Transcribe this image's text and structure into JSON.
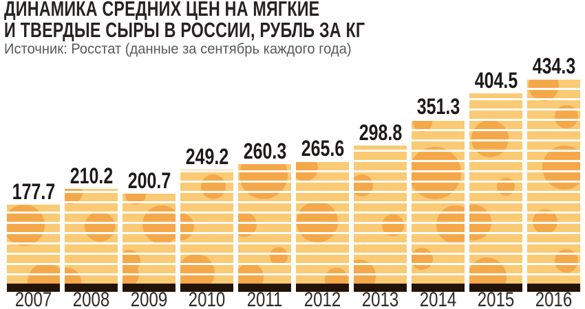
{
  "header": {
    "title_lines": [
      "ДИНАМИКА СРЕДНИХ ЦЕН НА МЯГКИЕ",
      "И ТВЕРДЫЕ СЫРЫ В РОССИИ, РУБЛЬ ЗА КГ"
    ],
    "source": "Источник: Росстат (данные за сентябрь каждого года)"
  },
  "chart_data": {
    "type": "bar",
    "title": "Динамика средних цен на мягкие и твердые сыры в России, рубль за кг",
    "source": "Росстат (данные за сентябрь каждого года)",
    "categories": [
      "2007",
      "2008",
      "2009",
      "2010",
      "2011",
      "2012",
      "2013",
      "2014",
      "2015",
      "2016"
    ],
    "values": [
      177.7,
      210.2,
      200.7,
      249.2,
      260.3,
      265.6,
      298.8,
      351.3,
      404.5,
      434.3
    ],
    "unit": "рубль за кг",
    "ylabel": "",
    "xlabel": "",
    "ylim": [
      0,
      434.3
    ],
    "grid": false,
    "legend": false,
    "value_labels_shown": true,
    "bar_style": "cheese-texture"
  },
  "colors": {
    "background": "#FFFFFF",
    "cheese_body": "#FACA74",
    "cheese_hole": "#F5A849",
    "stripe": "#FFFFFF",
    "base_strip": "#231307",
    "title": "#282222",
    "source": "#58595B",
    "value_label": "#1D1A19",
    "year_label": "#2E2A27"
  }
}
